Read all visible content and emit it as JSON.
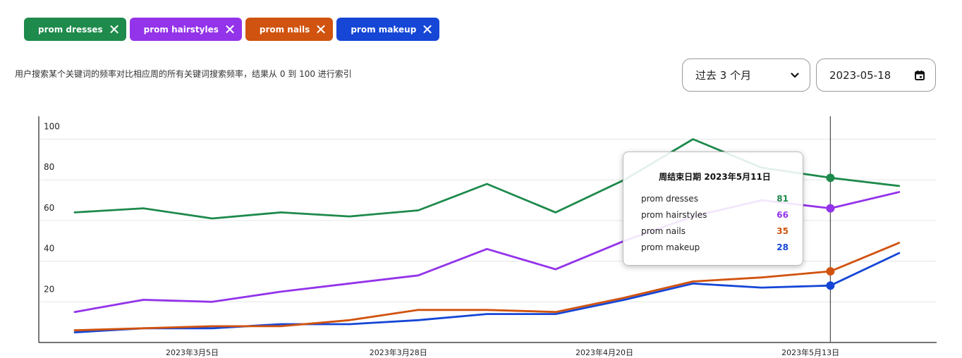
{
  "chips": [
    {
      "label": "prom dresses",
      "color": "#1e8a4c"
    },
    {
      "label": "prom hairstyles",
      "color": "#9333ea"
    },
    {
      "label": "prom nails",
      "color": "#d0530f"
    },
    {
      "label": "prom makeup",
      "color": "#1546d6"
    }
  ],
  "description": "用户搜索某个关键词的频率对比相应周的所有关键词搜索频率，结果从 0 到 100 进行索引",
  "controls": {
    "range_label": "过去 3 个月",
    "date_value": "2023-05-18",
    "chevron_icon": "chevron-down-icon",
    "calendar_icon": "calendar-icon"
  },
  "tooltip": {
    "title": "周结束日期 2023年5月11日",
    "rows": [
      {
        "name": "prom dresses",
        "value": "81",
        "color": "#1e8a4c"
      },
      {
        "name": "prom hairstyles",
        "value": "66",
        "color": "#9333ea"
      },
      {
        "name": "prom nails",
        "value": "35",
        "color": "#d0530f"
      },
      {
        "name": "prom makeup",
        "value": "28",
        "color": "#1546d6"
      }
    ]
  },
  "chart_data": {
    "type": "line",
    "title": "",
    "xlabel": "",
    "ylabel": "",
    "ylim": [
      0,
      110
    ],
    "yticks": [
      20,
      40,
      60,
      80,
      100
    ],
    "x": [
      "2023-02-23",
      "2023-03-02",
      "2023-03-09",
      "2023-03-16",
      "2023-03-23",
      "2023-03-30",
      "2023-04-06",
      "2023-04-13",
      "2023-04-20",
      "2023-04-27",
      "2023-05-04",
      "2023-05-11",
      "2023-05-18"
    ],
    "xticks": [
      {
        "index": 1.71,
        "label": "2023年3月5日"
      },
      {
        "index": 4.71,
        "label": "2023年3月28日"
      },
      {
        "index": 7.71,
        "label": "2023年4月20日"
      },
      {
        "index": 10.71,
        "label": "2023年5月13日"
      }
    ],
    "hover_index": 11,
    "grid": true,
    "series": [
      {
        "name": "prom dresses",
        "color": "#1e8a4c",
        "values": [
          64,
          66,
          61,
          64,
          62,
          65,
          78,
          64,
          80,
          100,
          86,
          81,
          77
        ]
      },
      {
        "name": "prom hairstyles",
        "color": "#9333ea",
        "values": [
          15,
          21,
          20,
          25,
          29,
          33,
          46,
          36,
          50,
          62,
          70,
          66,
          74
        ]
      },
      {
        "name": "prom nails",
        "color": "#d0530f",
        "values": [
          6,
          7,
          8,
          8,
          11,
          16,
          16,
          15,
          22,
          30,
          32,
          35,
          49
        ]
      },
      {
        "name": "prom makeup",
        "color": "#1546d6",
        "values": [
          5,
          7,
          7,
          9,
          9,
          11,
          14,
          14,
          21,
          29,
          27,
          28,
          44
        ]
      }
    ]
  }
}
